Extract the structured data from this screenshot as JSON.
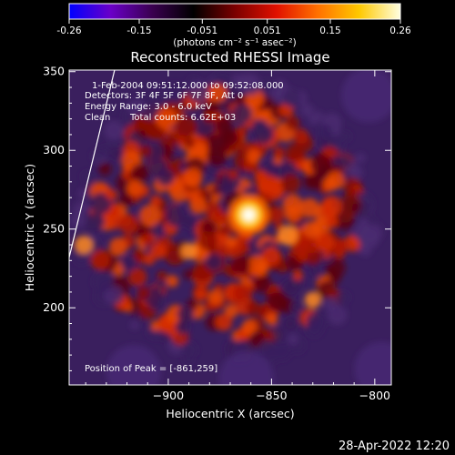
{
  "colorbar": {
    "ticks": [
      "-0.26",
      "-0.15",
      "-0.051",
      "0.051",
      "0.15",
      "0.26"
    ],
    "unit_label": "(photons cm⁻² s⁻¹ asec⁻²)",
    "colors": [
      "#0000ff",
      "#6a00c8",
      "#3a0050",
      "#000000",
      "#7a0000",
      "#e01000",
      "#ff7000",
      "#ffc800",
      "#ffffe0"
    ]
  },
  "chart_data": {
    "type": "heatmap",
    "title": "Reconstructed RHESSI Image",
    "xlabel": "Heliocentric X (arcsec)",
    "ylabel": "Heliocentric Y (arcsec)",
    "xlim": [
      -948,
      -792
    ],
    "ylim": [
      151,
      351
    ],
    "x_ticks": [
      -900,
      -850,
      -800
    ],
    "x_tick_labels": [
      "−900",
      "−850",
      "−800"
    ],
    "y_ticks": [
      200,
      250,
      300,
      350
    ],
    "y_tick_labels": [
      "200",
      "250",
      "300",
      "350"
    ],
    "peak": {
      "x": -861,
      "y": 259
    },
    "color_range": [
      -0.26,
      0.26
    ],
    "limb_line": [
      [
        -948,
        232
      ],
      [
        -926,
        351
      ]
    ]
  },
  "annotations": {
    "time_range": "1-Feb-2004 09:51:12.000 to 09:52:08.000",
    "detectors": "Detectors: 3F 4F 5F 6F 7F 8F, Att 0",
    "energy": "Energy Range: 3.0 - 6.0 keV",
    "method": "Clean",
    "counts": "Total counts: 6.62E+03",
    "peak_label": "Position of Peak = [-861,259]"
  },
  "footer": {
    "timestamp": "28-Apr-2022 12:20"
  }
}
